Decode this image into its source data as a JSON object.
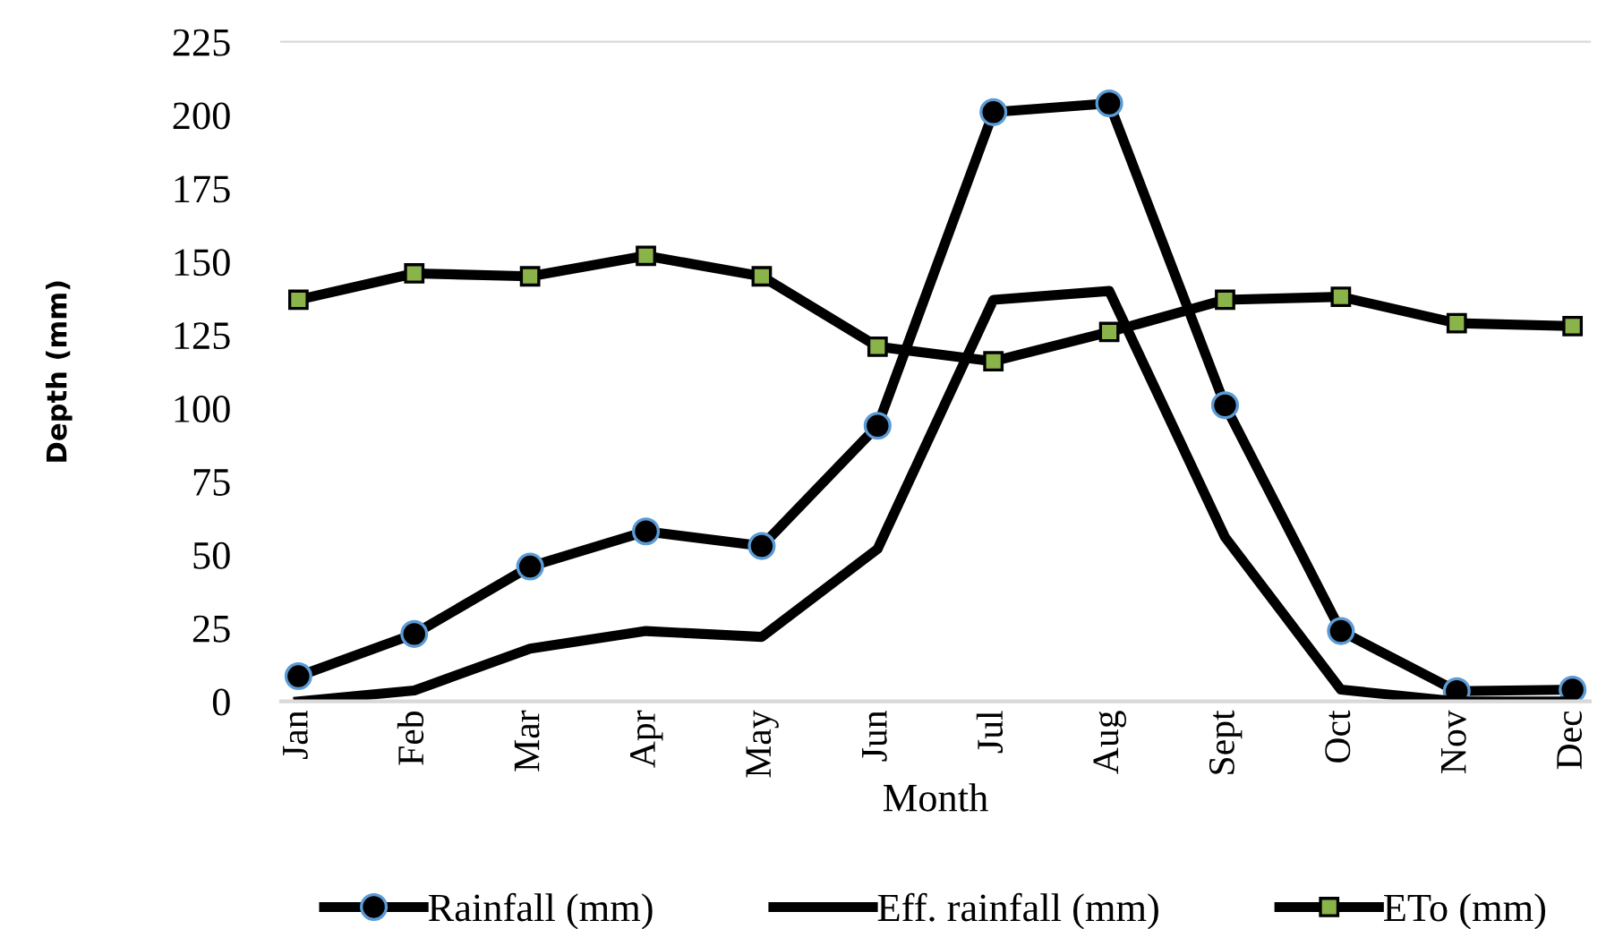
{
  "chart_data": {
    "type": "line",
    "xlabel": "Month",
    "ylabel": "Depth (mm)",
    "categories": [
      "Jan",
      "Feb",
      "Mar",
      "Apr",
      "May",
      "Jun",
      "Jul",
      "Aug",
      "Sept",
      "Oct",
      "Nov",
      "Dec"
    ],
    "series": [
      {
        "name": "Rainfall (mm)",
        "color": "#000000",
        "marker": "circle",
        "values": [
          8.6,
          23,
          46,
          58,
          53,
          94,
          201,
          204,
          101,
          24,
          3.5,
          4
        ]
      },
      {
        "name": "Eff. rainfall (mm)",
        "color": "#000000",
        "marker": "none",
        "values": [
          0,
          3.7,
          18,
          24,
          22,
          52,
          137,
          140,
          56,
          4,
          0,
          0
        ]
      },
      {
        "name": "ETo (mm)",
        "color": "#000000",
        "marker": "square",
        "values": [
          137,
          146,
          145,
          152,
          145,
          121,
          116,
          126,
          137,
          138,
          129,
          128
        ]
      }
    ],
    "ylim": [
      0,
      225
    ],
    "yticks": [
      0,
      25,
      50,
      75,
      100,
      125,
      150,
      175,
      200,
      225
    ],
    "grid": false,
    "legend": "bottom",
    "line_style": "solid"
  }
}
